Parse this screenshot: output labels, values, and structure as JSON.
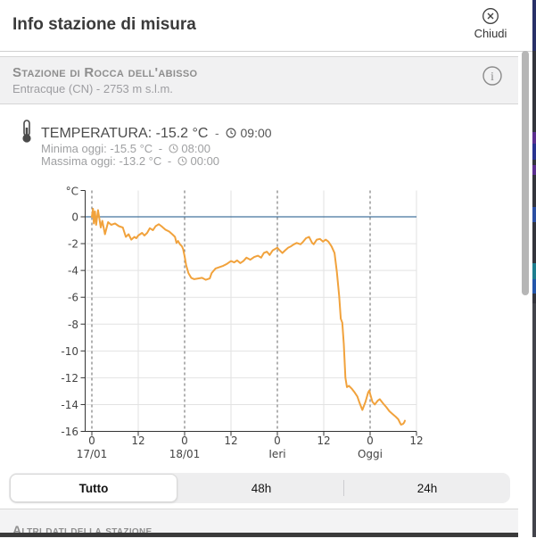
{
  "window": {
    "title": "Info stazione di misura",
    "close_label": "Chiudi"
  },
  "station": {
    "name": "Stazione di Rocca dell'abisso",
    "subtitle": "Entracque (CN) - 2753 m s.l.m."
  },
  "temperature": {
    "sep": "-",
    "current": {
      "label": "TEMPERATURA:",
      "value": "-15.2 °C",
      "time": "09:00"
    },
    "min": {
      "label": "Minima oggi:",
      "value": "-15.5 °C",
      "time": "08:00"
    },
    "max": {
      "label": "Massima oggi:",
      "value": "-13.2 °C",
      "time": "00:00"
    }
  },
  "range_selector": {
    "options": [
      {
        "label": "Tutto",
        "selected": true
      },
      {
        "label": "48h",
        "selected": false
      },
      {
        "label": "24h",
        "selected": false
      }
    ]
  },
  "bottom_section": {
    "title": "Altri dati della stazione"
  },
  "chart_data": {
    "type": "line",
    "unit_label": "°C",
    "ylabel": "°C",
    "ylim": [
      2,
      -16
    ],
    "x_hours_span": 84,
    "x_ticks": [
      {
        "h": 0,
        "label": "0"
      },
      {
        "h": 12,
        "label": "12"
      },
      {
        "h": 24,
        "label": "0"
      },
      {
        "h": 36,
        "label": "12"
      },
      {
        "h": 48,
        "label": "0"
      },
      {
        "h": 60,
        "label": "12"
      },
      {
        "h": 72,
        "label": "0"
      },
      {
        "h": 84,
        "label": "12"
      }
    ],
    "day_labels": [
      {
        "h": 0,
        "label": "17/01"
      },
      {
        "h": 24,
        "label": "18/01"
      },
      {
        "h": 48,
        "label": "Ieri"
      },
      {
        "h": 72,
        "label": "Oggi"
      }
    ],
    "y_ticks": [
      0,
      -2,
      -4,
      -6,
      -8,
      -10,
      -12,
      -14,
      -16
    ],
    "zero_line_value": 0,
    "colors": {
      "series": "#f1a23c",
      "zero_line": "#44739d",
      "grid": "#e2e2e2",
      "day_grid": "#666666",
      "axis": "#333333",
      "tick_label": "#444444"
    },
    "series": [
      {
        "name": "Temperatura",
        "points": [
          [
            0,
            0.0
          ],
          [
            0.3,
            0.6
          ],
          [
            0.5,
            -0.5
          ],
          [
            0.8,
            0.4
          ],
          [
            1.1,
            -0.6
          ],
          [
            1.6,
            0.5
          ],
          [
            2.3,
            -0.8
          ],
          [
            2.7,
            -0.3
          ],
          [
            3.4,
            -1.3
          ],
          [
            4.2,
            -0.4
          ],
          [
            5,
            -0.6
          ],
          [
            6,
            -0.5
          ],
          [
            7,
            -0.7
          ],
          [
            8,
            -0.8
          ],
          [
            8.8,
            -1.5
          ],
          [
            9.5,
            -1.3
          ],
          [
            10.2,
            -1.7
          ],
          [
            11,
            -1.5
          ],
          [
            11.5,
            -1.6
          ],
          [
            12,
            -1.4
          ],
          [
            13,
            -1.2
          ],
          [
            13.6,
            -1.4
          ],
          [
            14.3,
            -1.2
          ],
          [
            15,
            -0.85
          ],
          [
            15.8,
            -1.0
          ],
          [
            16.5,
            -0.7
          ],
          [
            17.3,
            -0.55
          ],
          [
            18,
            -0.7
          ],
          [
            19,
            -0.95
          ],
          [
            20,
            -1.1
          ],
          [
            20.8,
            -1.3
          ],
          [
            21.5,
            -1.5
          ],
          [
            21.9,
            -1.95
          ],
          [
            22.3,
            -1.8
          ],
          [
            22.8,
            -2.05
          ],
          [
            23.3,
            -2.2
          ],
          [
            23.6,
            -2.4
          ],
          [
            24,
            -2.95
          ],
          [
            24.4,
            -3.6
          ],
          [
            25,
            -4.2
          ],
          [
            25.7,
            -4.55
          ],
          [
            26.5,
            -4.65
          ],
          [
            27.5,
            -4.6
          ],
          [
            28.5,
            -4.55
          ],
          [
            29.5,
            -4.7
          ],
          [
            30.5,
            -4.6
          ],
          [
            31,
            -4.2
          ],
          [
            32,
            -3.85
          ],
          [
            33,
            -3.75
          ],
          [
            34,
            -3.65
          ],
          [
            35,
            -3.5
          ],
          [
            36,
            -3.3
          ],
          [
            36.8,
            -3.4
          ],
          [
            37.6,
            -3.25
          ],
          [
            38.4,
            -3.45
          ],
          [
            39.2,
            -3.3
          ],
          [
            40,
            -3.05
          ],
          [
            41,
            -3.2
          ],
          [
            42,
            -3.0
          ],
          [
            43,
            -2.9
          ],
          [
            43.8,
            -3.05
          ],
          [
            44.5,
            -2.7
          ],
          [
            45.3,
            -2.6
          ],
          [
            46,
            -2.85
          ],
          [
            46.8,
            -2.5
          ],
          [
            48,
            -2.3
          ],
          [
            48.6,
            -2.5
          ],
          [
            49.3,
            -2.7
          ],
          [
            50,
            -2.5
          ],
          [
            50.8,
            -2.3
          ],
          [
            51.5,
            -2.2
          ],
          [
            52.3,
            -2.05
          ],
          [
            53,
            -1.95
          ],
          [
            54,
            -2.05
          ],
          [
            54.7,
            -1.85
          ],
          [
            55.4,
            -1.6
          ],
          [
            56.2,
            -1.5
          ],
          [
            57,
            -1.95
          ],
          [
            57.4,
            -2.05
          ],
          [
            58.2,
            -1.7
          ],
          [
            59,
            -1.65
          ],
          [
            59.8,
            -1.85
          ],
          [
            60.5,
            -1.7
          ],
          [
            61.2,
            -1.85
          ],
          [
            62,
            -2.2
          ],
          [
            62.8,
            -2.7
          ],
          [
            63.4,
            -4.1
          ],
          [
            64,
            -5.9
          ],
          [
            64.4,
            -7.6
          ],
          [
            64.8,
            -7.9
          ],
          [
            65.2,
            -9.5
          ],
          [
            65.6,
            -12.0
          ],
          [
            66,
            -12.7
          ],
          [
            66.5,
            -12.6
          ],
          [
            67.2,
            -12.8
          ],
          [
            68,
            -13.1
          ],
          [
            68.7,
            -13.4
          ],
          [
            69.3,
            -13.9
          ],
          [
            70,
            -14.4
          ],
          [
            70.8,
            -13.8
          ],
          [
            71.5,
            -13.1
          ],
          [
            71.8,
            -12.95
          ],
          [
            72,
            -13.2
          ],
          [
            72.6,
            -13.8
          ],
          [
            73.2,
            -14.0
          ],
          [
            74,
            -13.7
          ],
          [
            74.5,
            -13.6
          ],
          [
            75.3,
            -13.9
          ],
          [
            76.2,
            -14.2
          ],
          [
            77,
            -14.5
          ],
          [
            77.8,
            -14.7
          ],
          [
            78.6,
            -14.9
          ],
          [
            79.3,
            -15.1
          ],
          [
            79.8,
            -15.4
          ],
          [
            80,
            -15.5
          ],
          [
            80.5,
            -15.45
          ],
          [
            80.8,
            -15.35
          ],
          [
            81,
            -15.2
          ]
        ]
      }
    ]
  }
}
